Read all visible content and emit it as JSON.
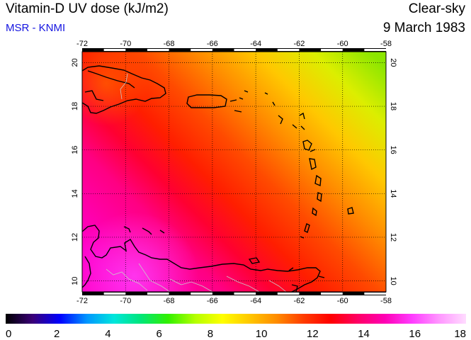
{
  "title": "Vitamin-D UV dose (kJ/m2)",
  "subtitle": "MSR - KNMI",
  "condition": "Clear-sky",
  "date": "9 March 1983",
  "map": {
    "lon_range": [
      -72,
      -58
    ],
    "lat_range": [
      9.5,
      20.5
    ],
    "lon_ticks": [
      "-72",
      "-70",
      "-68",
      "-66",
      "-64",
      "-62",
      "-60",
      "-58"
    ],
    "lat_ticks": [
      "10",
      "12",
      "14",
      "16",
      "18",
      "20"
    ],
    "grid": "dotted",
    "coastline_color": "#000000",
    "border_color": "#c8c8c8"
  },
  "colorbar": {
    "min": 0,
    "max": 18,
    "tick_labels": [
      "0",
      "2",
      "4",
      "6",
      "8",
      "10",
      "12",
      "14",
      "16",
      "18"
    ],
    "colors": [
      "#000000",
      "#3a0078",
      "#0000ff",
      "#0096ff",
      "#00e6dc",
      "#00e678",
      "#32f000",
      "#b4ff00",
      "#ffff00",
      "#ffc800",
      "#ff8c00",
      "#ff3c00",
      "#ff0000",
      "#ff0064",
      "#ff00b4",
      "#ff3cff",
      "#ff96ff",
      "#ffdcff"
    ]
  }
}
